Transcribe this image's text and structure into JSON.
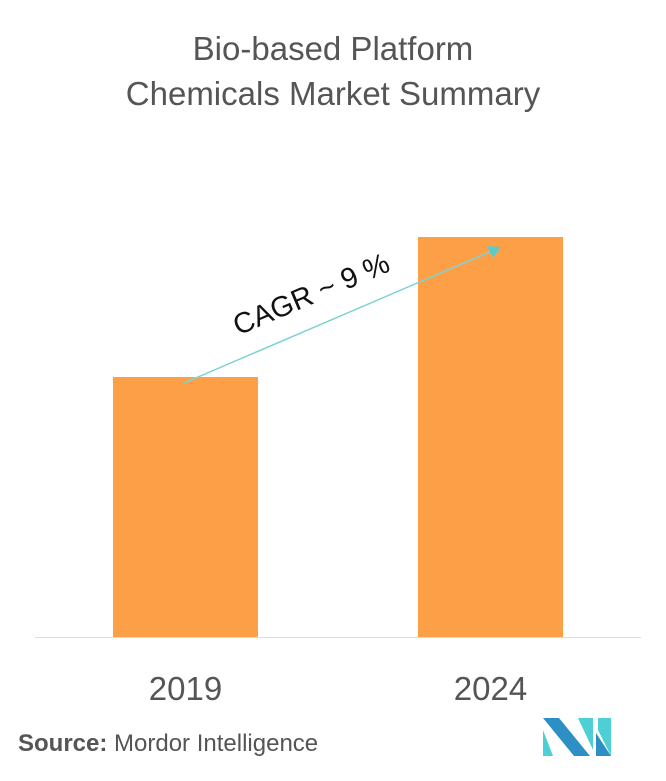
{
  "chart_data": {
    "type": "bar",
    "title_lines": [
      "Bio-based Platform",
      "Chemicals Market Summary"
    ],
    "categories": [
      "2019",
      "2024"
    ],
    "values": [
      65,
      100
    ],
    "ylim": [
      0,
      100
    ],
    "xlabel": "",
    "ylabel": "",
    "grid": false,
    "annotation": "CAGR ~ 9 %",
    "bar_color": "#fd9f47",
    "arrow_color": "#7fd3d6"
  },
  "source": {
    "label": "Source:",
    "text": "Mordor Intelligence"
  }
}
